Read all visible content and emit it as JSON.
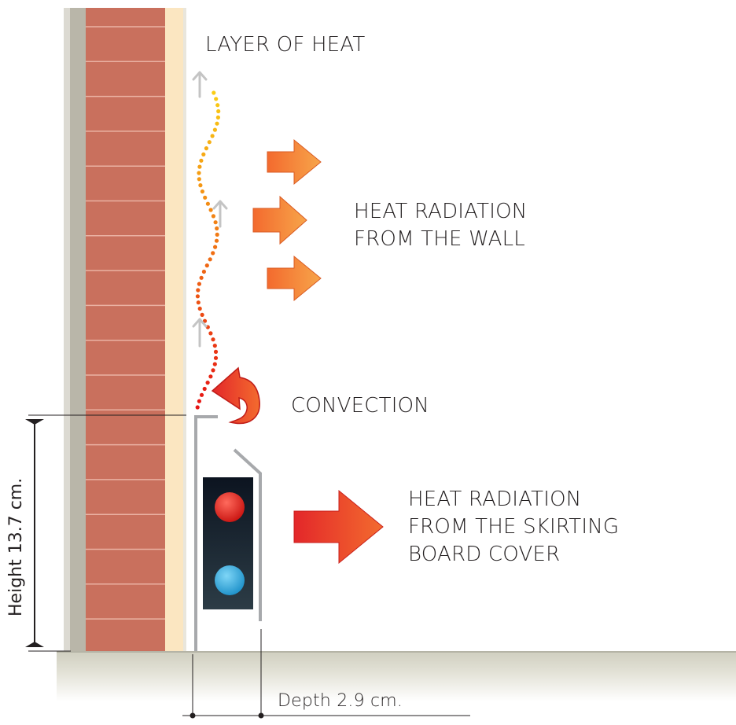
{
  "labels": {
    "layer_of_heat": "LAYER OF HEAT",
    "heat_radiation_wall": [
      "HEAT RADIATION",
      "FROM THE WALL"
    ],
    "convection": "CONVECTION",
    "heat_radiation_skirting": [
      "HEAT RADIATION",
      "FROM THE SKIRTING",
      "BOARD COVER"
    ],
    "height": "Height 13.7 cm.",
    "depth": "Depth 2.9 cm."
  },
  "colors": {
    "brick": "#c9705d",
    "mortar": "#eab2a3",
    "plaster": "#b9b6a9",
    "insulation": "#fbe6c1",
    "floor": "#d7d6c8",
    "arrow_orange": "#f0743a",
    "arrow_red": "#e5302a",
    "hot_pipe": "#e6241f",
    "cold_pipe": "#29a9e0",
    "text": "#231f20"
  },
  "icons": {
    "radiation_arrows": "right-arrow-icon",
    "convection_arrow": "curved-arrow-icon",
    "air_flow": "up-arrow-icon"
  }
}
